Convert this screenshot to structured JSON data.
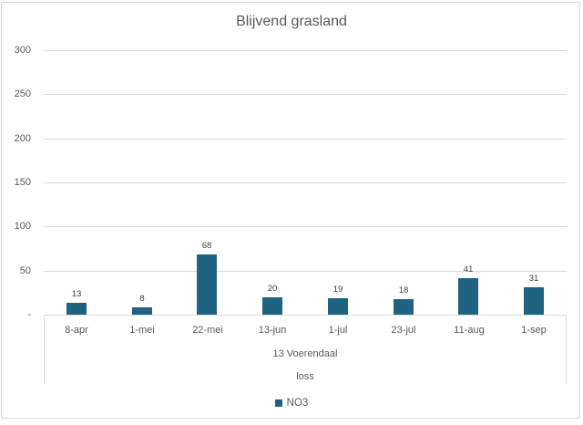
{
  "chart_data": {
    "type": "bar",
    "title": "Blijvend grasland",
    "categories": [
      "8-apr",
      "1-mei",
      "22-mei",
      "13-jun",
      "1-jul",
      "23-jul",
      "11-aug",
      "1-sep"
    ],
    "values": [
      13,
      8,
      68,
      20,
      19,
      18,
      41,
      31
    ],
    "series_name": "NO3",
    "group_label": "13 Voerendaal",
    "sub_group_label": "loss",
    "xlabel": "",
    "ylabel": "",
    "ylim": [
      0,
      300
    ],
    "y_tick_values": [
      300,
      250,
      200,
      150,
      100,
      50,
      0
    ],
    "y_tick_labels": [
      "300",
      "250",
      "200",
      "150",
      "100",
      "50",
      "-"
    ],
    "grid": true,
    "data_labels": true,
    "legend_position": "bottom",
    "bar_color": "#1F6380"
  },
  "colors": {
    "bar": "#1F6380",
    "gridline": "#D9D9D9",
    "axis_text": "#595959",
    "data_label_text": "#404040",
    "frame_border": "#D6D6D6",
    "background": "#FFFFFF"
  }
}
